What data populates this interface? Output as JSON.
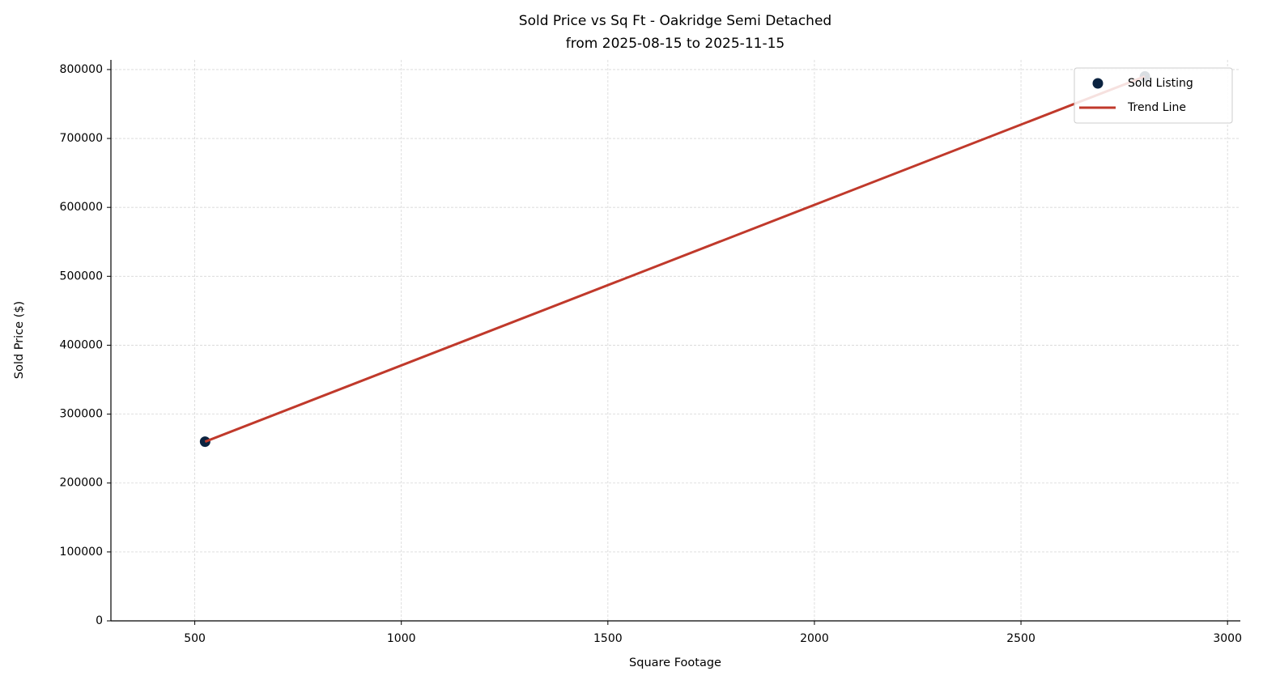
{
  "chart_data": {
    "type": "scatter",
    "title": "Sold Price vs Sq Ft - Oakridge Semi Detached",
    "subtitle": "from 2025-08-15 to 2025-11-15",
    "x_label": "Square Footage",
    "y_label": "Sold Price ($)",
    "xlim": [
      297,
      3031
    ],
    "xticks": [
      500,
      1000,
      1500,
      2000,
      2500,
      3000
    ],
    "ylim": [
      0,
      814000
    ],
    "yticks": [
      0,
      100000,
      200000,
      300000,
      400000,
      500000,
      600000,
      700000,
      800000
    ],
    "grid": true,
    "legend": "upper right",
    "series": [
      {
        "name": "Sold Listing",
        "color": "#0b2340",
        "type": "scatter",
        "x": [
          525,
          2800
        ],
        "values": [
          260000,
          790000
        ]
      },
      {
        "name": "Trend Line",
        "color": "#c0392b",
        "type": "line",
        "x": [
          525,
          2800
        ],
        "values": [
          260000,
          790000
        ]
      }
    ]
  }
}
